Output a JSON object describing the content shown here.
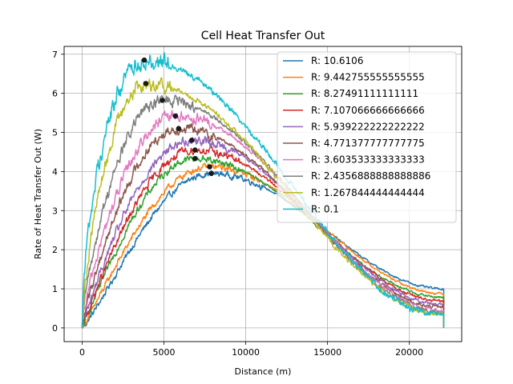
{
  "chart_data": {
    "type": "line",
    "title": "Cell Heat Transfer Out",
    "xlabel": "Distance (m)",
    "ylabel": "Rate of Heat Transfer Out (W)",
    "xlim": [
      -1100,
      23200
    ],
    "ylim": [
      -0.35,
      7.2
    ],
    "xticks": [
      0,
      5000,
      10000,
      15000,
      20000
    ],
    "yticks": [
      0,
      1,
      2,
      3,
      4,
      5,
      6,
      7
    ],
    "grid": true,
    "legend_position": "top-right",
    "x_end": 22100,
    "series": [
      {
        "name": "R: 10.6106",
        "color": "#1f77b4",
        "peak_x": 7900,
        "peak_y": 3.95,
        "end_y": 1.0,
        "rise_pow": 1.15,
        "noise": 0.03
      },
      {
        "name": "R: 9.442755555555555",
        "color": "#ff7f0e",
        "peak_x": 7800,
        "peak_y": 4.12,
        "end_y": 0.88,
        "rise_pow": 1.05,
        "noise": 0.03
      },
      {
        "name": "R: 8.27491111111111",
        "color": "#2ca02c",
        "peak_x": 6900,
        "peak_y": 4.33,
        "end_y": 0.78,
        "rise_pow": 1.0,
        "noise": 0.035
      },
      {
        "name": "R: 7.107066666666666",
        "color": "#d62728",
        "peak_x": 6900,
        "peak_y": 4.55,
        "end_y": 0.68,
        "rise_pow": 0.95,
        "noise": 0.04
      },
      {
        "name": "R: 5.939222222222222",
        "color": "#9467bd",
        "peak_x": 6700,
        "peak_y": 4.8,
        "end_y": 0.6,
        "rise_pow": 0.9,
        "noise": 0.045
      },
      {
        "name": "R: 4.771377777777775",
        "color": "#8c564b",
        "peak_x": 5900,
        "peak_y": 5.1,
        "end_y": 0.52,
        "rise_pow": 0.85,
        "noise": 0.05
      },
      {
        "name": "R: 3.603533333333333",
        "color": "#e377c2",
        "peak_x": 5700,
        "peak_y": 5.42,
        "end_y": 0.45,
        "rise_pow": 0.78,
        "noise": 0.055
      },
      {
        "name": "R: 2.4356888888888886",
        "color": "#7f7f7f",
        "peak_x": 4900,
        "peak_y": 5.82,
        "end_y": 0.4,
        "rise_pow": 0.72,
        "noise": 0.06
      },
      {
        "name": "R: 1.267844444444444",
        "color": "#bcbd22",
        "peak_x": 3900,
        "peak_y": 6.25,
        "end_y": 0.35,
        "rise_pow": 0.65,
        "noise": 0.07
      },
      {
        "name": "R: 0.1",
        "color": "#17becf",
        "peak_x": 3800,
        "peak_y": 6.85,
        "end_y": 0.32,
        "rise_pow": 0.55,
        "noise": 0.09
      }
    ]
  }
}
